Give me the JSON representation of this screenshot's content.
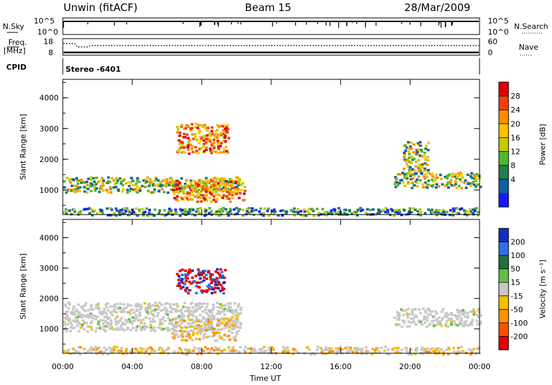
{
  "header": {
    "station": "Unwin (fitACF)",
    "beam": "Beam 15",
    "date": "28/Mar/2009"
  },
  "strips": {
    "nsky_label": "N.Sky",
    "nsky_ticks": [
      "10^5",
      "10^0"
    ],
    "nsearch_label": "N.Search",
    "nsearch_ticks": [
      "10^5",
      "10^0"
    ],
    "freq_label_1": "Freq.",
    "freq_label_2": "[MHz]",
    "freq_ticks": [
      "18",
      "8"
    ],
    "nave_label": "Nave",
    "nave_ticks": [
      "60",
      "0"
    ],
    "cpid_label": "CPID",
    "cpid_value": "Stereo -6401"
  },
  "chart_data": [
    {
      "type": "heatmap",
      "title": "",
      "quantity": "Power",
      "colorbar_label": "Power [dB]",
      "colorbar_ticks": [
        "28",
        "24",
        "20",
        "16",
        "12",
        "8",
        "4"
      ],
      "colorbar_colors": [
        "#e00000",
        "#f04010",
        "#ff8c00",
        "#ffc000",
        "#c8c800",
        "#50b830",
        "#208050",
        "#1060a0",
        "#1818ff"
      ],
      "ylabel": "Slant Range [km]",
      "yticks": [
        "4000",
        "3000",
        "2000",
        "1000"
      ],
      "ylim": [
        200,
        4600
      ],
      "xlabel": "Time UT",
      "xticks": [
        "00:00",
        "04:00",
        "08:00",
        "12:00",
        "16:00",
        "20:00",
        "00:00"
      ],
      "xlim_hours": [
        0,
        24
      ],
      "regions": [
        {
          "t0": 0.0,
          "t1": 10.2,
          "r0": 950,
          "r1": 1450,
          "level": "mid"
        },
        {
          "t0": 6.2,
          "t1": 10.5,
          "r0": 650,
          "r1": 1350,
          "level": "high"
        },
        {
          "t0": 6.5,
          "t1": 9.5,
          "r0": 2200,
          "r1": 3200,
          "level": "high"
        },
        {
          "t0": 19.0,
          "t1": 24.0,
          "r0": 1100,
          "r1": 1600,
          "level": "mid"
        },
        {
          "t0": 19.5,
          "t1": 21.0,
          "r0": 1500,
          "r1": 2600,
          "level": "mid"
        },
        {
          "t0": 0.0,
          "t1": 24.0,
          "r0": 200,
          "r1": 450,
          "level": "low"
        }
      ]
    },
    {
      "type": "heatmap",
      "title": "",
      "quantity": "Velocity",
      "colorbar_label": "Velocity [m s⁻¹]",
      "colorbar_ticks": [
        "200",
        "100",
        "50",
        "15",
        "-15",
        "-50",
        "-100",
        "-200"
      ],
      "colorbar_colors": [
        "#1030c0",
        "#3070e0",
        "#207040",
        "#60c040",
        "#c8c8c8",
        "#f0c000",
        "#ff9000",
        "#ff5000",
        "#e00000"
      ],
      "ylabel": "Slant Range [km]",
      "yticks": [
        "4000",
        "3000",
        "2000",
        "1000"
      ],
      "ylim": [
        200,
        4600
      ],
      "xlabel": "Time UT",
      "xticks": [
        "00:00",
        "04:00",
        "08:00",
        "12:00",
        "16:00",
        "20:00",
        "00:00"
      ],
      "xlim_hours": [
        0,
        24
      ],
      "regions": [
        {
          "t0": 0.0,
          "t1": 10.2,
          "r0": 950,
          "r1": 1900,
          "level": "zero"
        },
        {
          "t0": 6.2,
          "t1": 10.0,
          "r0": 650,
          "r1": 1400,
          "level": "neg"
        },
        {
          "t0": 6.5,
          "t1": 9.3,
          "r0": 2200,
          "r1": 3000,
          "level": "mixed"
        },
        {
          "t0": 19.0,
          "t1": 24.0,
          "r0": 1100,
          "r1": 1700,
          "level": "zero"
        },
        {
          "t0": 0.0,
          "t1": 24.0,
          "r0": 200,
          "r1": 450,
          "level": "neg"
        }
      ]
    }
  ]
}
